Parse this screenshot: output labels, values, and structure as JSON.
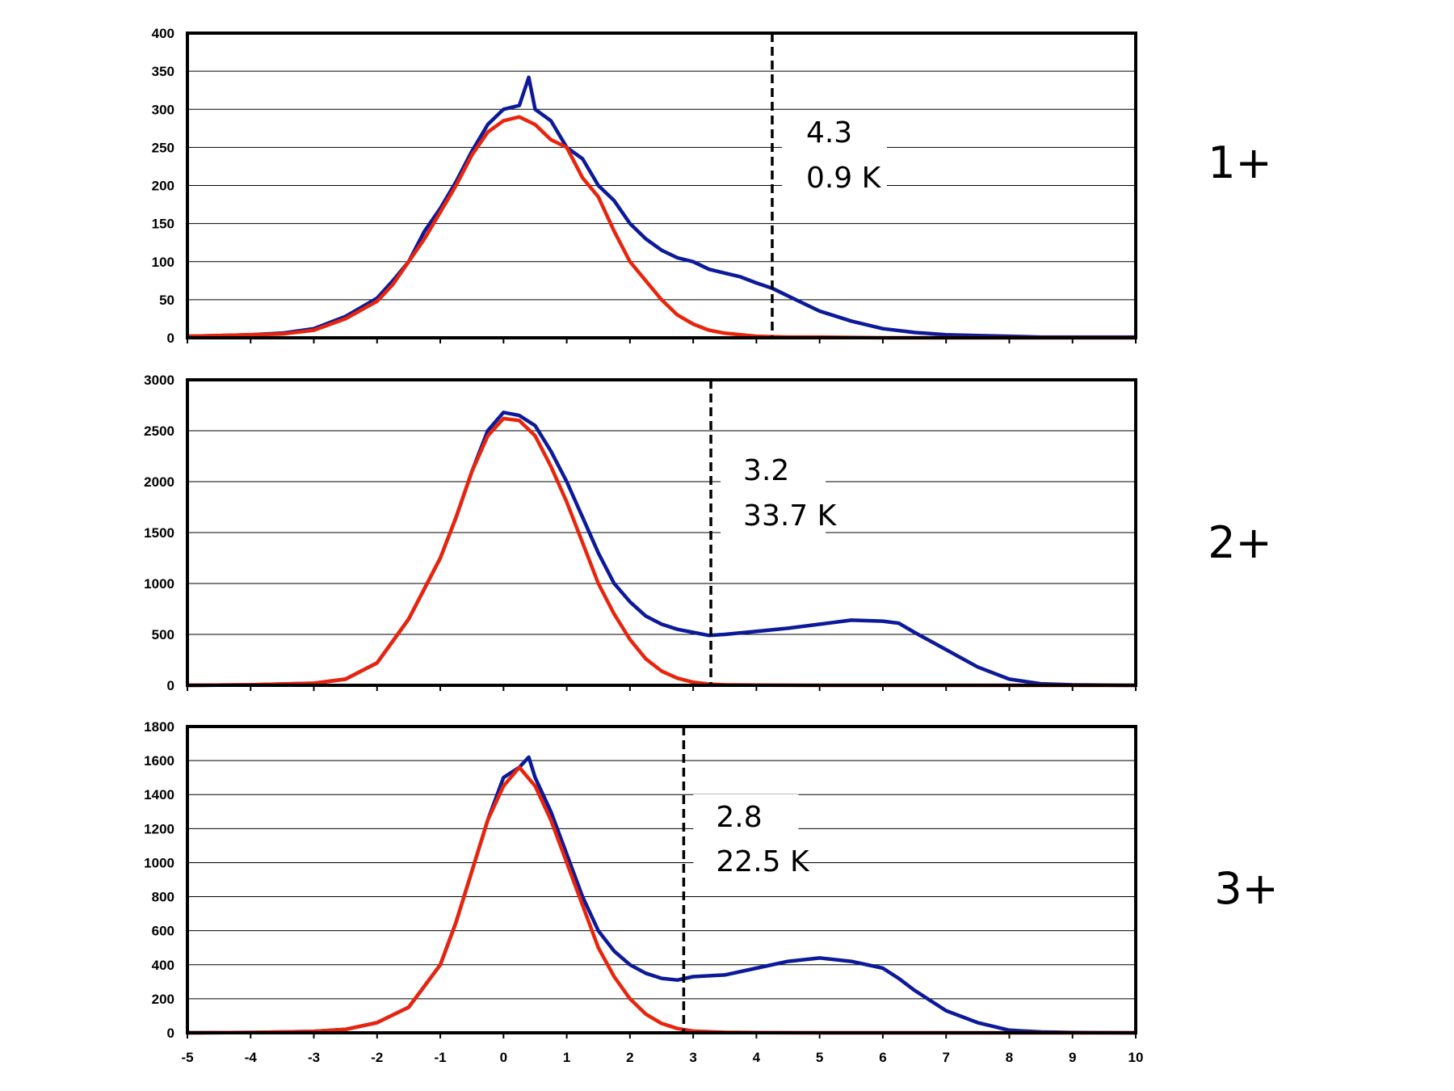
{
  "chart_data": [
    {
      "type": "line",
      "panel_label": "1+",
      "xlim": [
        -5,
        10
      ],
      "ylim": [
        0,
        400
      ],
      "yticks": [
        0,
        50,
        100,
        150,
        200,
        250,
        300,
        350,
        400
      ],
      "grid": true,
      "threshold": 4.25,
      "annotation": [
        "4.3",
        "0.9 K"
      ],
      "series": [
        {
          "color": "#0c1a99",
          "x": [
            -5,
            -4.5,
            -4,
            -3.5,
            -3,
            -2.5,
            -2,
            -1.75,
            -1.5,
            -1.25,
            -1,
            -0.75,
            -0.5,
            -0.25,
            0,
            0.25,
            0.4,
            0.5,
            0.75,
            1,
            1.25,
            1.5,
            1.75,
            2,
            2.25,
            2.5,
            2.75,
            3,
            3.25,
            3.5,
            3.75,
            4,
            4.25,
            4.5,
            4.75,
            5,
            5.5,
            6,
            6.5,
            7,
            7.5,
            8,
            8.5,
            9,
            9.5,
            10
          ],
          "y": [
            2,
            3,
            4,
            6,
            12,
            28,
            52,
            75,
            100,
            140,
            170,
            205,
            245,
            280,
            300,
            305,
            342,
            300,
            285,
            250,
            235,
            200,
            180,
            150,
            130,
            115,
            105,
            100,
            90,
            85,
            80,
            72,
            65,
            55,
            45,
            35,
            22,
            12,
            7,
            4,
            3,
            2,
            1,
            1,
            1,
            1
          ]
        },
        {
          "color": "#e8250c",
          "x": [
            -5,
            -4.5,
            -4,
            -3.5,
            -3,
            -2.5,
            -2,
            -1.75,
            -1.5,
            -1.25,
            -1,
            -0.75,
            -0.5,
            -0.25,
            0,
            0.25,
            0.5,
            0.75,
            1,
            1.25,
            1.5,
            1.75,
            2,
            2.25,
            2.5,
            2.75,
            3,
            3.25,
            3.5,
            3.75,
            4,
            4.5,
            5,
            6,
            7,
            8,
            10
          ],
          "y": [
            2,
            3,
            4,
            5,
            10,
            25,
            48,
            70,
            100,
            130,
            165,
            200,
            240,
            270,
            285,
            290,
            280,
            260,
            250,
            210,
            185,
            140,
            100,
            75,
            50,
            30,
            18,
            10,
            6,
            4,
            2,
            1,
            1,
            0,
            0,
            0,
            0
          ]
        }
      ]
    },
    {
      "type": "line",
      "panel_label": "2+",
      "xlim": [
        -5,
        10
      ],
      "ylim": [
        0,
        3000
      ],
      "yticks": [
        0,
        500,
        1000,
        1500,
        2000,
        2500,
        3000
      ],
      "grid": true,
      "threshold": 3.28,
      "annotation": [
        "3.2",
        "33.7 K"
      ],
      "series": [
        {
          "color": "#0c1a99",
          "x": [
            -5,
            -4,
            -3,
            -2.5,
            -2,
            -1.5,
            -1,
            -0.75,
            -0.5,
            -0.25,
            0,
            0.25,
            0.5,
            0.75,
            1,
            1.25,
            1.5,
            1.75,
            2,
            2.25,
            2.5,
            2.75,
            3,
            3.25,
            3.5,
            4,
            4.5,
            5,
            5.5,
            6,
            6.25,
            6.5,
            7,
            7.5,
            8,
            8.5,
            9,
            10
          ],
          "y": [
            0,
            5,
            20,
            60,
            220,
            650,
            1250,
            1650,
            2100,
            2500,
            2680,
            2650,
            2550,
            2300,
            2000,
            1650,
            1300,
            1000,
            820,
            680,
            600,
            550,
            520,
            490,
            500,
            530,
            560,
            600,
            640,
            630,
            610,
            520,
            350,
            180,
            60,
            15,
            5,
            0
          ]
        },
        {
          "color": "#e8250c",
          "x": [
            -5,
            -4,
            -3,
            -2.5,
            -2,
            -1.5,
            -1,
            -0.75,
            -0.5,
            -0.25,
            0,
            0.25,
            0.5,
            0.75,
            1,
            1.25,
            1.5,
            1.75,
            2,
            2.25,
            2.5,
            2.75,
            3,
            3.25,
            3.5,
            4,
            5,
            6,
            8,
            10
          ],
          "y": [
            0,
            5,
            20,
            60,
            220,
            650,
            1250,
            1650,
            2100,
            2450,
            2620,
            2600,
            2450,
            2150,
            1800,
            1400,
            1000,
            700,
            450,
            260,
            140,
            70,
            30,
            12,
            5,
            2,
            0,
            0,
            0,
            0
          ]
        }
      ]
    },
    {
      "type": "line",
      "panel_label": "3+",
      "xlim": [
        -5,
        10
      ],
      "ylim": [
        0,
        1800
      ],
      "yticks": [
        0,
        200,
        400,
        600,
        800,
        1000,
        1200,
        1400,
        1600,
        1800
      ],
      "xticks": [
        -5,
        -4,
        -3,
        -2,
        -1,
        0,
        1,
        2,
        3,
        4,
        5,
        6,
        7,
        8,
        9,
        10
      ],
      "grid": true,
      "threshold": 2.85,
      "annotation": [
        "2.8",
        "22.5 K"
      ],
      "series": [
        {
          "color": "#0c1a99",
          "x": [
            -5,
            -4,
            -3,
            -2.5,
            -2,
            -1.5,
            -1,
            -0.75,
            -0.5,
            -0.25,
            0,
            0.25,
            0.4,
            0.5,
            0.75,
            1,
            1.25,
            1.5,
            1.75,
            2,
            2.25,
            2.5,
            2.75,
            3,
            3.5,
            4,
            4.5,
            5,
            5.5,
            6,
            6.25,
            6.5,
            7,
            7.5,
            8,
            8.5,
            9,
            10
          ],
          "y": [
            0,
            2,
            8,
            20,
            60,
            150,
            400,
            650,
            950,
            1250,
            1500,
            1560,
            1620,
            1500,
            1300,
            1050,
            800,
            600,
            480,
            400,
            350,
            320,
            310,
            330,
            340,
            380,
            420,
            440,
            420,
            380,
            320,
            250,
            130,
            60,
            15,
            5,
            2,
            0
          ]
        },
        {
          "color": "#e8250c",
          "x": [
            -5,
            -4,
            -3,
            -2.5,
            -2,
            -1.5,
            -1,
            -0.75,
            -0.5,
            -0.25,
            0,
            0.25,
            0.5,
            0.75,
            1,
            1.25,
            1.5,
            1.75,
            2,
            2.25,
            2.5,
            2.75,
            3,
            3.5,
            4,
            5,
            6,
            8,
            10
          ],
          "y": [
            0,
            2,
            8,
            20,
            60,
            150,
            400,
            650,
            950,
            1250,
            1450,
            1560,
            1450,
            1250,
            1000,
            750,
            500,
            330,
            200,
            110,
            55,
            25,
            10,
            3,
            1,
            0,
            0,
            0,
            0
          ]
        }
      ]
    }
  ]
}
